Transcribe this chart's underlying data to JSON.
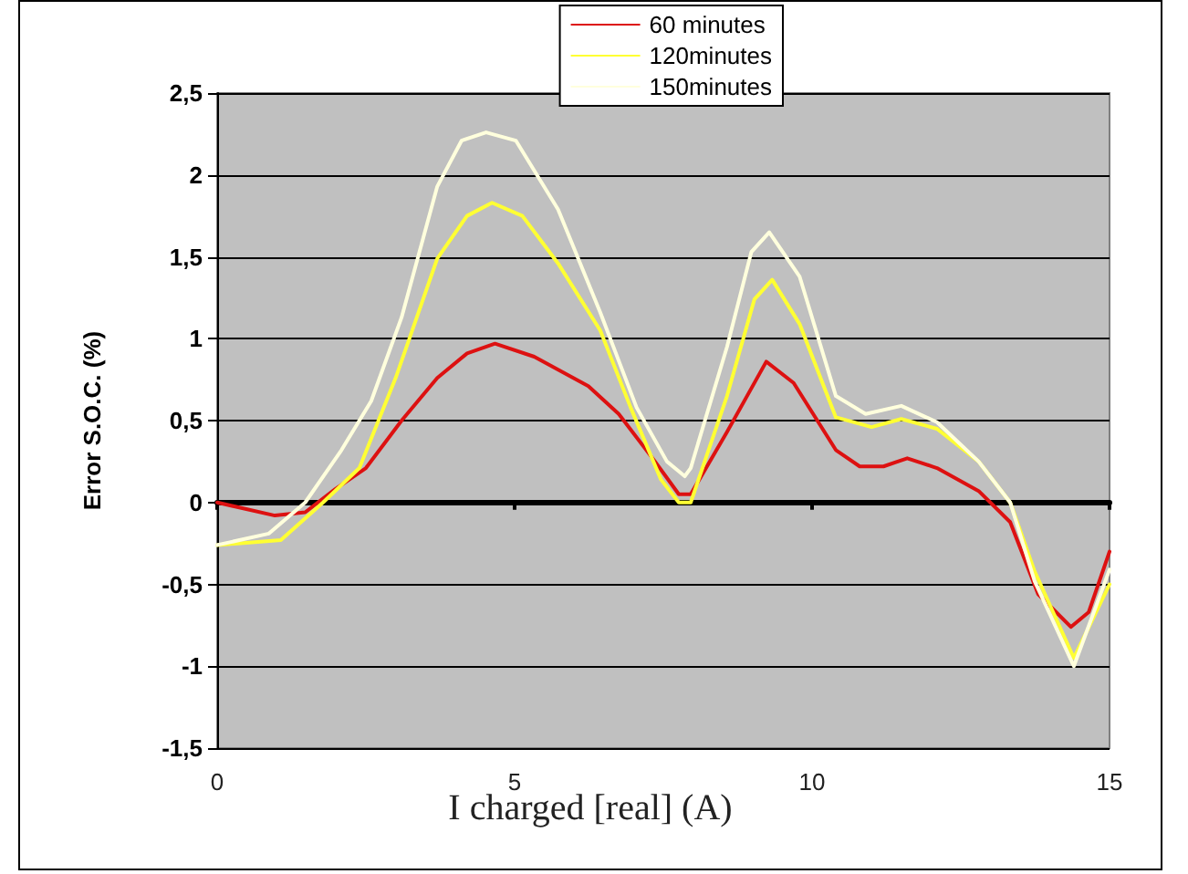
{
  "chart_data": {
    "type": "line",
    "xlabel": "I charged [real] (A)",
    "ylabel": "Error S.O.C. (%)",
    "xlim": [
      0,
      15
    ],
    "xticks": [
      0,
      5,
      10,
      15
    ],
    "ylim": [
      -1.5,
      2.5
    ],
    "yticks": [
      {
        "value": -1.5,
        "label": "-1,5"
      },
      {
        "value": -1,
        "label": "-1"
      },
      {
        "value": -0.5,
        "label": "-0,5"
      },
      0,
      {
        "value": 0.5,
        "label": "0,5"
      },
      1,
      {
        "value": 1.5,
        "label": "1,5"
      },
      2,
      {
        "value": 2.5,
        "label": "2,5"
      }
    ],
    "grid": "y",
    "legend": "top right",
    "marker": "none",
    "line_style": "solid",
    "series": [
      {
        "name": "60 minutes",
        "color": "#dd1111",
        "x": [
          0,
          0.97,
          1.48,
          1.98,
          2.5,
          3.1,
          3.7,
          4.2,
          4.67,
          5.33,
          6.24,
          6.75,
          7.36,
          7.76,
          7.96,
          8.57,
          9.23,
          9.69,
          10.4,
          10.8,
          11.2,
          11.6,
          12.1,
          12.8,
          13.33,
          13.8,
          14.35,
          14.65,
          15
        ],
        "values": [
          0,
          -0.08,
          -0.06,
          0.08,
          0.21,
          0.5,
          0.76,
          0.91,
          0.97,
          0.89,
          0.71,
          0.54,
          0.25,
          0.05,
          0.05,
          0.43,
          0.86,
          0.73,
          0.32,
          0.22,
          0.22,
          0.27,
          0.21,
          0.07,
          -0.12,
          -0.56,
          -0.76,
          -0.67,
          -0.3
        ]
      },
      {
        "name": "120minutes",
        "color": "#ffff33",
        "x": [
          0,
          1.07,
          1.78,
          2.39,
          3.0,
          3.7,
          4.2,
          4.62,
          5.13,
          5.73,
          6.44,
          6.95,
          7.46,
          7.76,
          7.96,
          8.57,
          9.03,
          9.33,
          9.79,
          10.4,
          11.0,
          11.5,
          12.1,
          12.8,
          13.33,
          13.74,
          14.4,
          15
        ],
        "values": [
          -0.26,
          -0.23,
          0,
          0.21,
          0.76,
          1.49,
          1.75,
          1.83,
          1.75,
          1.46,
          1.05,
          0.58,
          0.14,
          0,
          0,
          0.65,
          1.24,
          1.36,
          1.09,
          0.52,
          0.46,
          0.51,
          0.45,
          0.25,
          0,
          -0.42,
          -0.95,
          -0.5
        ]
      },
      {
        "name": "150minutes",
        "color": "#ffffdd",
        "x": [
          0,
          0.87,
          1.48,
          2.09,
          2.59,
          3.1,
          3.7,
          4.11,
          4.52,
          5.02,
          5.73,
          6.44,
          7.05,
          7.56,
          7.86,
          7.96,
          8.57,
          8.98,
          9.28,
          9.79,
          10.4,
          10.9,
          11.5,
          12.1,
          12.8,
          13.33,
          13.74,
          14.4,
          15
        ],
        "values": [
          -0.26,
          -0.19,
          0,
          0.32,
          0.62,
          1.13,
          1.93,
          2.21,
          2.26,
          2.21,
          1.79,
          1.16,
          0.58,
          0.25,
          0.16,
          0.21,
          0.95,
          1.53,
          1.65,
          1.38,
          0.65,
          0.54,
          0.59,
          0.49,
          0.25,
          0,
          -0.48,
          -1.0,
          -0.41
        ]
      }
    ]
  }
}
